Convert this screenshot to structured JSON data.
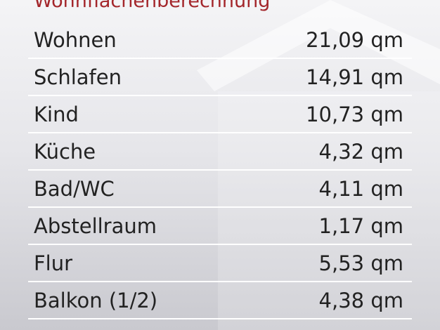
{
  "title": "Wohnflächenberechnung",
  "table": {
    "rows": [
      [
        "Wohnen",
        "21,09 qm"
      ],
      [
        "Schlafen",
        "14,91 qm"
      ],
      [
        "Kind",
        "10,73 qm"
      ],
      [
        "Küche",
        "4,32 qm"
      ],
      [
        "Bad/WC",
        "4,11 qm"
      ],
      [
        "Abstellraum",
        "1,17 qm"
      ],
      [
        "Flur",
        "5,53 qm"
      ],
      [
        "Balkon (1/2)",
        "4,38 qm"
      ]
    ]
  }
}
